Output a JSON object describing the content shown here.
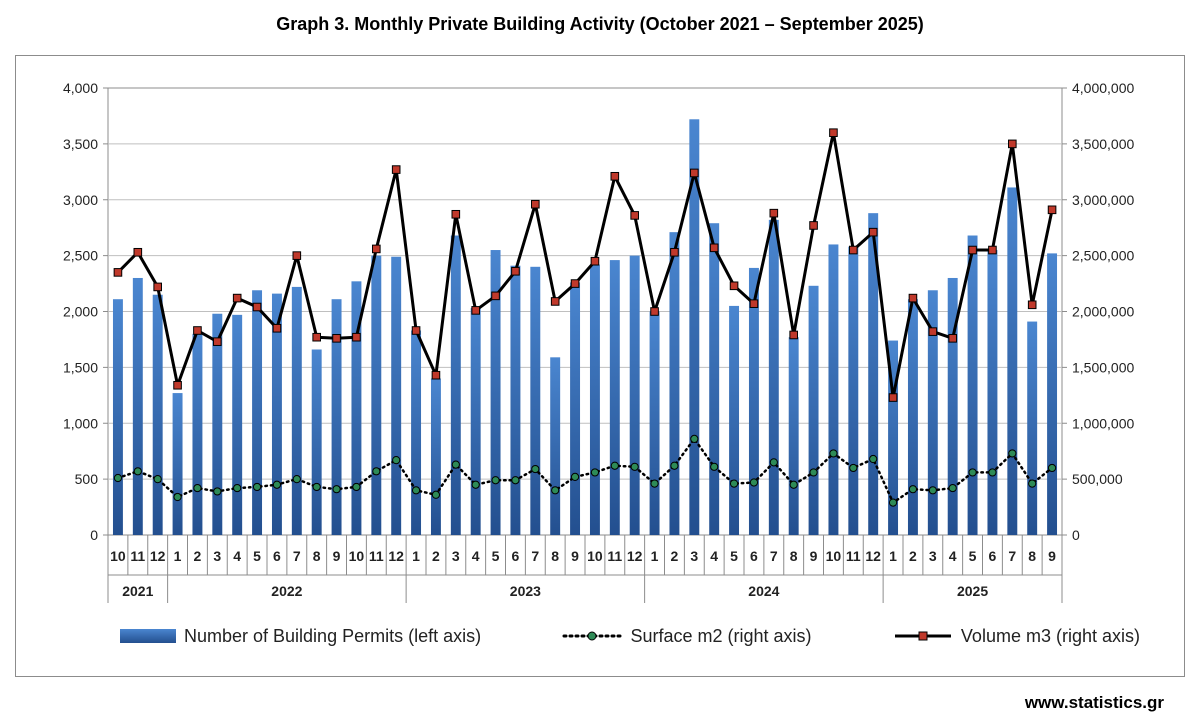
{
  "chart_data": {
    "type": "bar+line",
    "title": "Graph 3. Monthly Private Building Activity (October 2021 – September 2025)",
    "months": [
      "10",
      "11",
      "12",
      "1",
      "2",
      "3",
      "4",
      "5",
      "6",
      "7",
      "8",
      "9",
      "10",
      "11",
      "12",
      "1",
      "2",
      "3",
      "4",
      "5",
      "6",
      "7",
      "8",
      "9",
      "10",
      "11",
      "12",
      "1",
      "2",
      "3",
      "4",
      "5",
      "6",
      "7",
      "8",
      "9",
      "10",
      "11",
      "12",
      "1",
      "2",
      "3",
      "4",
      "5",
      "6",
      "7",
      "8",
      "9"
    ],
    "years": [
      {
        "label": "2021",
        "start": 0,
        "count": 3
      },
      {
        "label": "2022",
        "start": 3,
        "count": 12
      },
      {
        "label": "2023",
        "start": 15,
        "count": 12
      },
      {
        "label": "2024",
        "start": 27,
        "count": 12
      },
      {
        "label": "2025",
        "start": 39,
        "count": 9
      }
    ],
    "left_axis": {
      "min": 0,
      "max": 4000,
      "step": 500,
      "ticks": [
        "0",
        "500",
        "1,000",
        "1,500",
        "2,000",
        "2,500",
        "3,000",
        "3,500",
        "4,000"
      ]
    },
    "right_axis": {
      "min": 0,
      "max": 4000000,
      "step": 500000,
      "ticks": [
        "0",
        "500,000",
        "1,000,000",
        "1,500,000",
        "2,000,000",
        "2,500,000",
        "3,000,000",
        "3,500,000",
        "4,000,000"
      ]
    },
    "series": [
      {
        "name": "Number of Building Permits (left axis)",
        "type": "bar",
        "axis": "left",
        "color": "#3a72bd",
        "values": [
          2110,
          2300,
          2150,
          1270,
          1800,
          1980,
          1970,
          2190,
          2160,
          2220,
          1660,
          2110,
          2270,
          2500,
          2490,
          1830,
          1400,
          2680,
          2030,
          2550,
          2410,
          2400,
          1590,
          2260,
          2420,
          2460,
          2500,
          2000,
          2710,
          3720,
          2790,
          2050,
          2390,
          2820,
          1770,
          2230,
          2600,
          2580,
          2880,
          1740,
          2110,
          2190,
          2300,
          2680,
          2550,
          3110,
          1910,
          2520
        ]
      },
      {
        "name": "Surface m2  (right axis)",
        "type": "line",
        "axis": "right",
        "style": "dotted",
        "marker_color": "#2e8b57",
        "values": [
          510000,
          570000,
          500000,
          340000,
          420000,
          390000,
          420000,
          430000,
          450000,
          500000,
          430000,
          410000,
          430000,
          570000,
          670000,
          400000,
          360000,
          630000,
          450000,
          490000,
          490000,
          590000,
          400000,
          520000,
          560000,
          620000,
          610000,
          460000,
          620000,
          860000,
          610000,
          460000,
          470000,
          650000,
          450000,
          560000,
          730000,
          600000,
          680000,
          290000,
          410000,
          400000,
          420000,
          560000,
          560000,
          730000,
          460000,
          600000
        ]
      },
      {
        "name": "Volume m3 (right axis)",
        "type": "line",
        "axis": "right",
        "style": "solid",
        "marker_color": "#c0392b",
        "values": [
          2350000,
          2530000,
          2220000,
          1340000,
          1830000,
          1730000,
          2120000,
          2040000,
          1850000,
          2500000,
          1770000,
          1760000,
          1770000,
          2560000,
          3270000,
          1830000,
          1430000,
          2870000,
          2010000,
          2140000,
          2360000,
          2960000,
          2090000,
          2250000,
          2450000,
          3210000,
          2860000,
          2000000,
          2530000,
          3240000,
          2570000,
          2230000,
          2070000,
          2880000,
          1790000,
          2770000,
          3600000,
          2550000,
          2710000,
          1230000,
          2120000,
          1820000,
          1760000,
          2550000,
          2550000,
          3500000,
          2060000,
          2910000
        ]
      }
    ]
  },
  "footer": {
    "url": "www.statistics.gr"
  }
}
